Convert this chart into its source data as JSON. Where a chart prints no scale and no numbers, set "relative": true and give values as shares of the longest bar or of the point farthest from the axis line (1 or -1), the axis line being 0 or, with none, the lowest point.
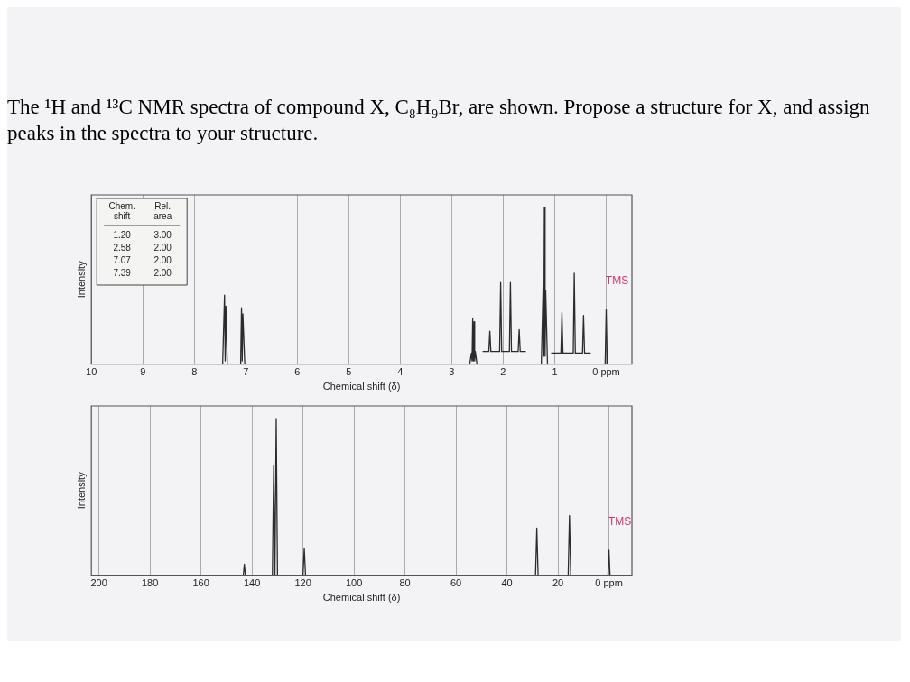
{
  "chart_data": [
    {
      "type": "line",
      "title": "The ¹H and ¹³C NMR spectra of compound X, C₈H₉Br, are shown. Propose a structure for X, and assign peaks in the spectra to your structure.",
      "xlabel": "Chemical shift (δ)",
      "ylabel": "Intensity",
      "relative": true,
      "grid": "x",
      "xlim": [
        10,
        -0.5
      ],
      "xticks": [
        10,
        9,
        8,
        7,
        6,
        5,
        4,
        3,
        2,
        1,
        {
          "value": 0,
          "label": "0 ppm"
        }
      ],
      "annotations": [
        "Chem. shift",
        "Rel. area",
        "1.20",
        "3.00",
        "2.58",
        "2.00",
        "7.07",
        "2.00",
        "7.39",
        "2.00",
        {
          "text": "TMS",
          "x": 0,
          "y": 0.35
        }
      ],
      "series": [
        {
          "color": "#2b2b2b",
          "x": [
            10,
            7.45,
            7.413,
            7.4,
            7.387,
            7.36,
            7.1,
            7.083,
            7.07,
            7.057,
            7.02,
            2.65,
            2.618,
            2.605,
            2.593,
            2.58,
            2.567,
            2.555,
            2.542,
            2.51,
            1.26,
            1.225,
            1.212,
            1.2,
            1.187,
            1.175,
            1.14,
            0.02,
            0,
            -0.02,
            -0.3
          ],
          "values": [
            0,
            0,
            0.44,
            0.02,
            0.37,
            0,
            0,
            0.36,
            0.02,
            0.32,
            0,
            0,
            0.07,
            0.02,
            0.29,
            0.02,
            0.27,
            0.02,
            0.08,
            0,
            0,
            0.49,
            0.05,
            1,
            0.05,
            0.47,
            0,
            0,
            0.35,
            0,
            0
          ]
        },
        {
          "color": "#2b2b2b",
          "x": [
            2.4,
            2.28,
            2.26,
            2.24,
            2.07,
            2.05,
            2.03,
            1.88,
            1.86,
            1.84,
            1.71,
            1.69,
            1.67,
            1.56
          ],
          "values": [
            0.08,
            0.08,
            0.21,
            0.08,
            0.08,
            0.52,
            0.08,
            0.08,
            0.52,
            0.08,
            0.08,
            0.22,
            0.08,
            0.08
          ]
        },
        {
          "color": "#2b2b2b",
          "x": [
            1.07,
            0.88,
            0.86,
            0.84,
            0.64,
            0.62,
            0.6,
            0.46,
            0.44,
            0.42,
            0.3
          ],
          "values": [
            0.07,
            0.07,
            0.33,
            0.07,
            0.07,
            0.58,
            0.07,
            0.07,
            0.31,
            0.07,
            0.07
          ]
        }
      ]
    },
    {
      "type": "line",
      "xlabel": "Chemical shift (δ)",
      "ylabel": "Intensity",
      "relative": true,
      "grid": "x",
      "xlim": [
        203,
        -9
      ],
      "xticks": [
        200,
        180,
        160,
        140,
        120,
        100,
        80,
        60,
        40,
        20,
        {
          "value": 0,
          "label": "0 ppm"
        }
      ],
      "annotations": [
        {
          "text": "TMS",
          "x": 0,
          "y": 0.16
        }
      ],
      "series": [
        {
          "color": "#2b2b2b",
          "x": [
            190,
            143.4,
            143,
            142.6,
            132,
            131.5,
            131,
            130.9,
            130.5,
            130,
            120,
            119.5,
            119,
            28.8,
            28.3,
            27.8,
            16,
            15.5,
            15,
            0.4,
            0,
            -0.4,
            -2
          ],
          "values": [
            0,
            0,
            0.07,
            0,
            0,
            0.7,
            0,
            0,
            1,
            0,
            0,
            0.17,
            0,
            0,
            0.3,
            0,
            0,
            0.38,
            0,
            0,
            0.16,
            0,
            0
          ]
        }
      ]
    }
  ]
}
